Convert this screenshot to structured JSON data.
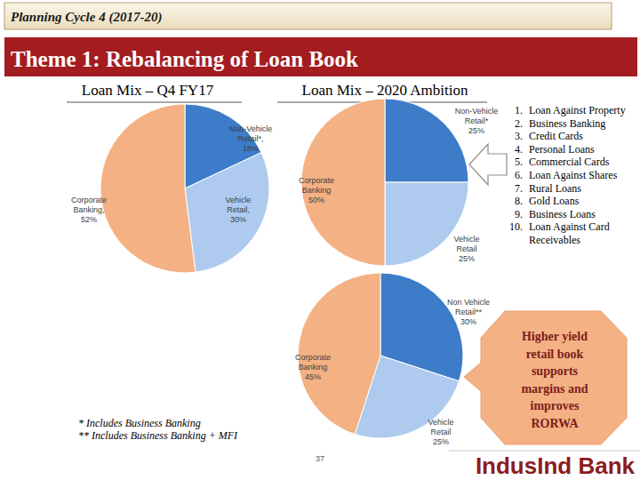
{
  "chart_data": [
    {
      "type": "pie",
      "title": "Loan Mix – Q4 FY17",
      "categories": [
        "Non-Vehicle Retail*,",
        "Vehicle Retail,",
        "Corporate Banking,"
      ],
      "values": [
        18,
        30,
        52
      ],
      "value_labels": [
        "18%",
        "30%",
        "52%"
      ],
      "colors": [
        "#3d7cc9",
        "#aecbef",
        "#f4b183"
      ],
      "data_labels": true
    },
    {
      "type": "pie",
      "title": "Loan Mix – 2020 Ambition",
      "categories": [
        "Non-Vehicle Retail*",
        "Vehicle Retail",
        "Corporate Banking"
      ],
      "values": [
        25,
        25,
        50
      ],
      "value_labels": [
        "25%",
        "25%",
        "50%"
      ],
      "colors": [
        "#3d7cc9",
        "#aecbef",
        "#f4b183"
      ],
      "data_labels": true
    },
    {
      "type": "pie",
      "categories": [
        "Non Vehicle Retail**",
        "Vehicle Retail",
        "Corporate Banking"
      ],
      "values": [
        30,
        25,
        45
      ],
      "value_labels": [
        "30%",
        "25%",
        "45%"
      ],
      "colors": [
        "#3d7cc9",
        "#aecbef",
        "#f4b183"
      ],
      "data_labels": true
    }
  ],
  "page": {
    "header": "Planning Cycle 4 (2017-20)",
    "theme": "Theme 1: Rebalancing of Loan Book",
    "list": [
      {
        "number": "1.",
        "text": "Loan Against Property"
      },
      {
        "number": "2.",
        "text": "Business Banking"
      },
      {
        "number": "3.",
        "text": "Credit Cards"
      },
      {
        "number": "4.",
        "text": "Personal Loans"
      },
      {
        "number": "5.",
        "text": "Commercial Cards"
      },
      {
        "number": "6.",
        "text": "Loan Against Shares"
      },
      {
        "number": "7.",
        "text": "Rural Loans"
      },
      {
        "number": "8.",
        "text": "Gold Loans"
      },
      {
        "number": "9.",
        "text": "Business Loans"
      },
      {
        "number": "10.",
        "text": "Loan Against Card Receivables"
      }
    ],
    "callout": [
      "Higher yield",
      "retail book",
      "supports",
      "margins and",
      "improves",
      "RORWA"
    ],
    "footnotes": [
      "* Includes Business Banking",
      "** Includes Business Banking + MFI"
    ],
    "page_number": "37",
    "logo": "IndusInd Bank"
  }
}
